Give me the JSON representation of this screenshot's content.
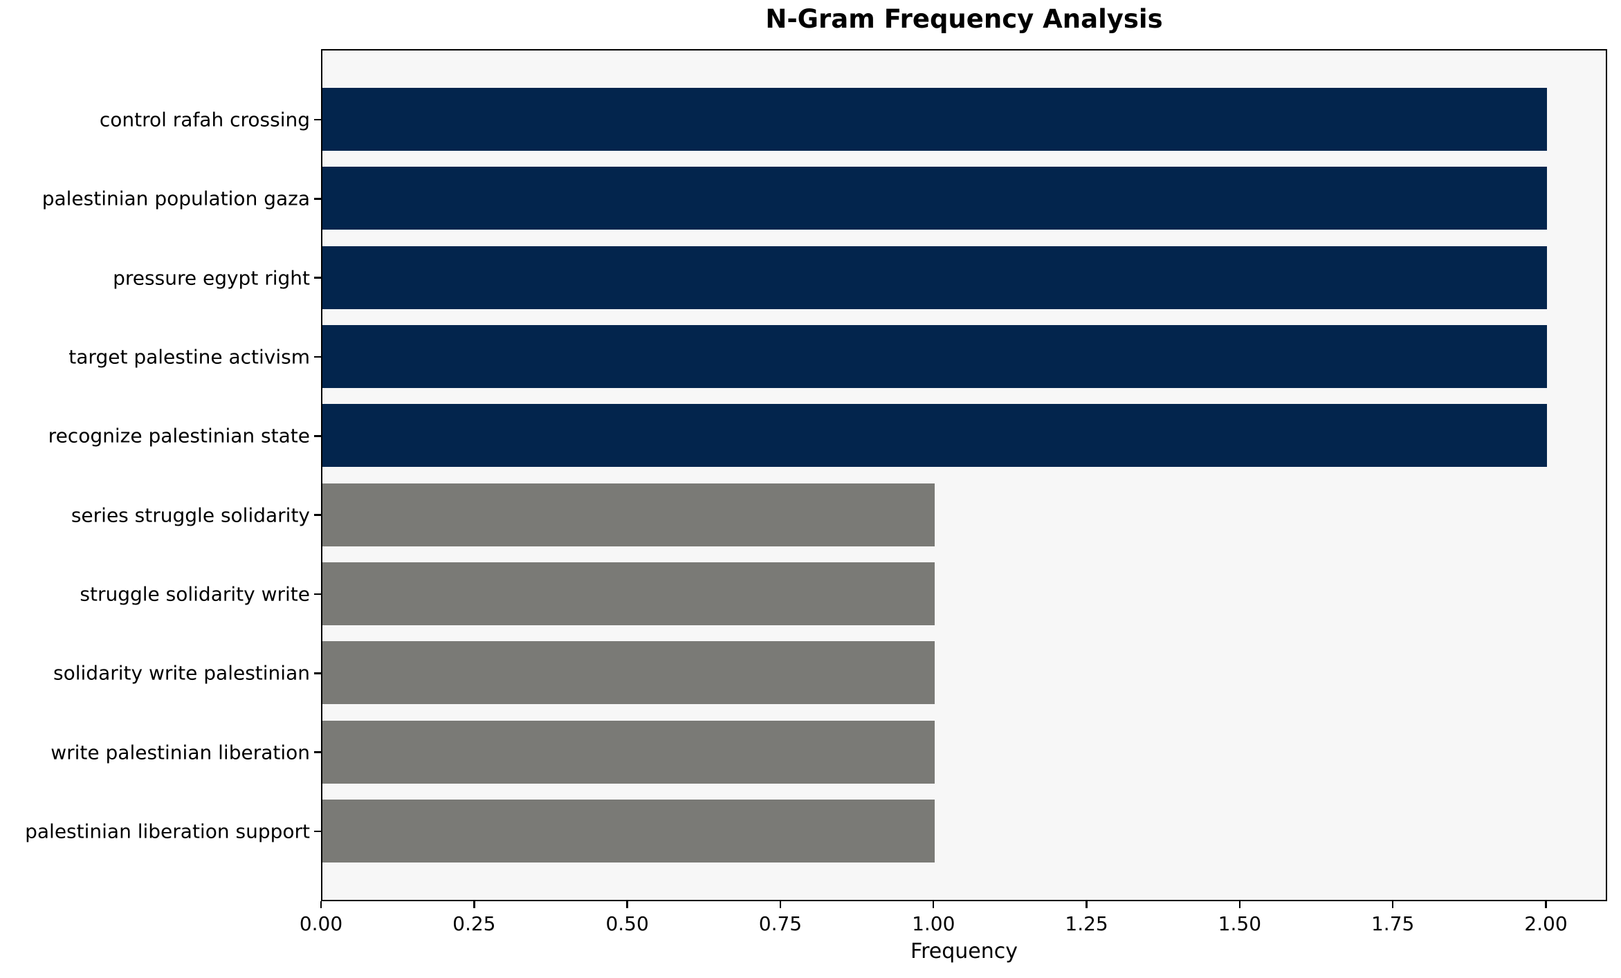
{
  "chart_data": {
    "type": "bar",
    "orientation": "horizontal",
    "title": "N-Gram Frequency Analysis",
    "xlabel": "Frequency",
    "ylabel": "",
    "categories": [
      "control rafah crossing",
      "palestinian population gaza",
      "pressure egypt right",
      "target palestine activism",
      "recognize palestinian state",
      "series struggle solidarity",
      "struggle solidarity write",
      "solidarity write palestinian",
      "write palestinian liberation",
      "palestinian liberation support"
    ],
    "values": [
      2,
      2,
      2,
      2,
      2,
      1,
      1,
      1,
      1,
      1
    ],
    "bar_colors": [
      "#03254d",
      "#03254d",
      "#03254d",
      "#03254d",
      "#03254d",
      "#7a7a76",
      "#7a7a76",
      "#7a7a76",
      "#7a7a76",
      "#7a7a76"
    ],
    "xlim": [
      0,
      2.1
    ],
    "xtick_values": [
      0,
      0.25,
      0.5,
      0.75,
      1.0,
      1.25,
      1.5,
      1.75,
      2.0
    ],
    "xtick_labels": [
      "0.00",
      "0.25",
      "0.50",
      "0.75",
      "1.00",
      "1.25",
      "1.50",
      "1.75",
      "2.00"
    ],
    "grid": false,
    "legend": null,
    "colors": {
      "highlight_bar": "#03254d",
      "default_bar": "#7a7a76",
      "plot_background": "#f7f7f7",
      "figure_background": "#ffffff",
      "spine": "#000000",
      "text": "#000000"
    }
  }
}
